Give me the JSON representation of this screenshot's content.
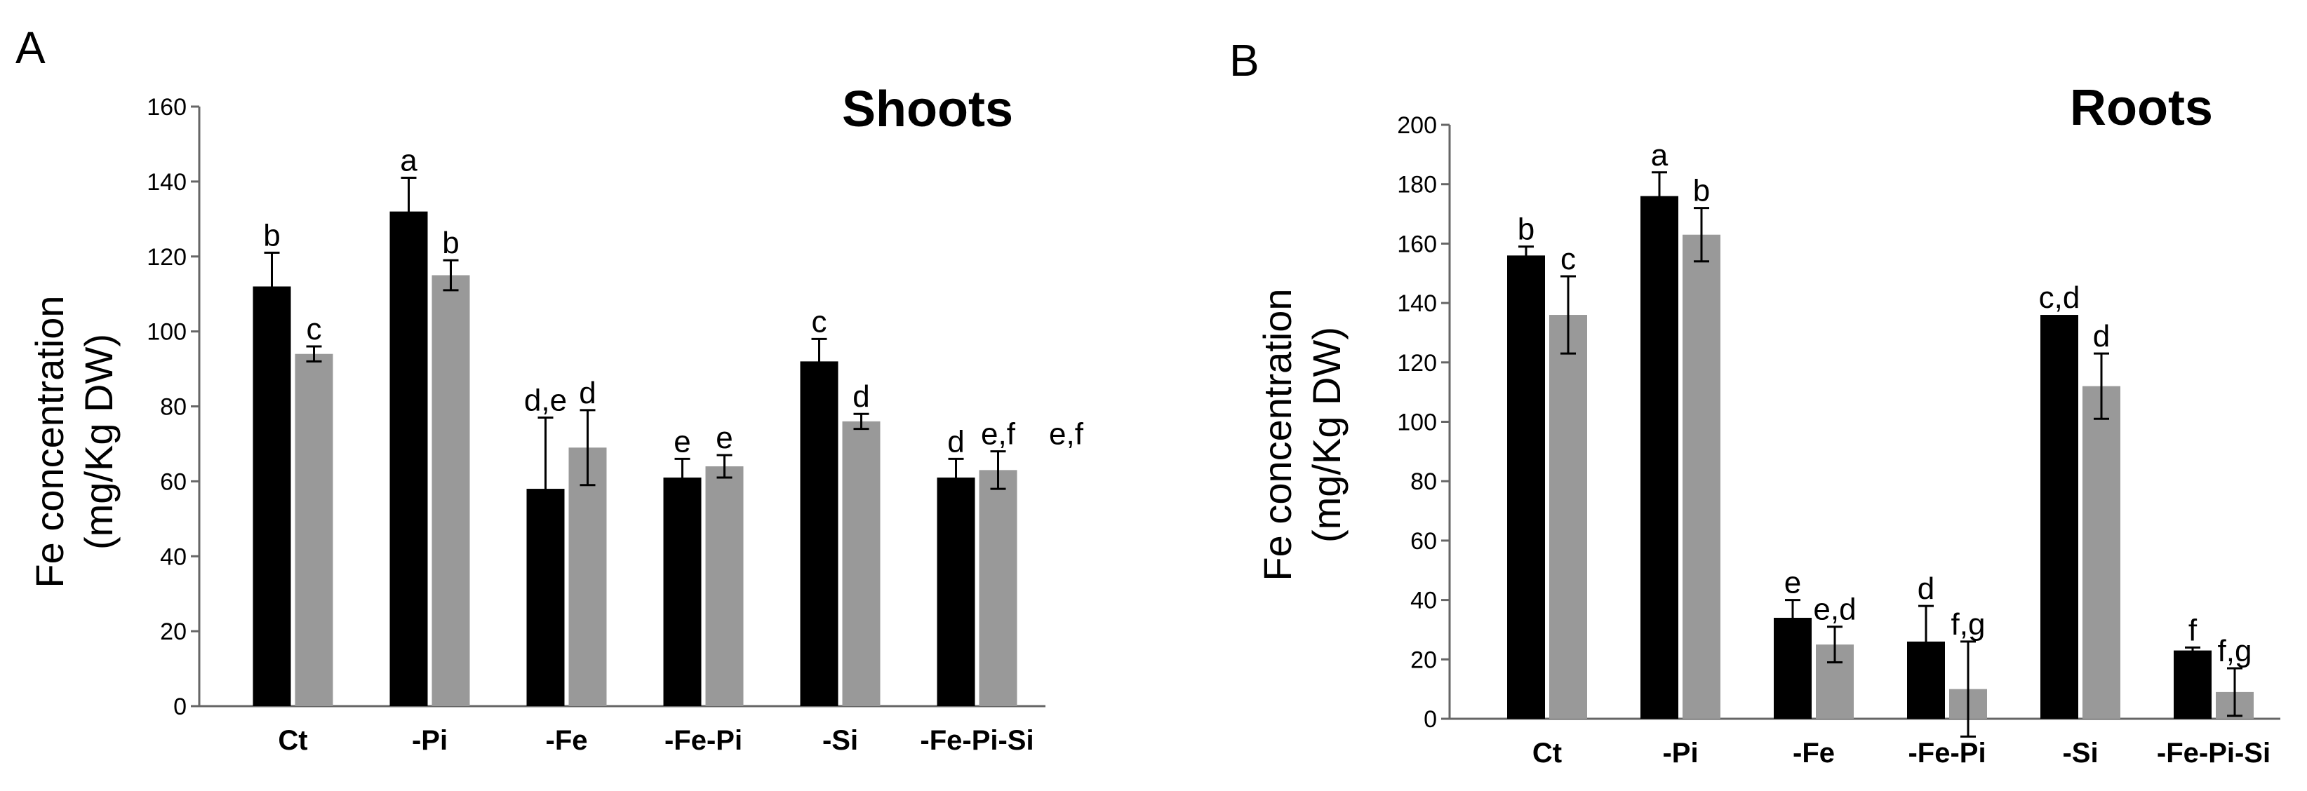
{
  "colors": {
    "series_dark": "#000000",
    "series_light": "#999999"
  },
  "chart_data": [
    {
      "type": "bar",
      "panel": "A",
      "title": "Shoots",
      "ylabel": [
        "Fe concentration",
        "(mg/Kg DW)"
      ],
      "ylim": [
        0,
        160
      ],
      "yticks": [
        0,
        20,
        40,
        60,
        80,
        100,
        120,
        140,
        160
      ],
      "categories": [
        "Ct",
        "-Pi",
        "-Fe",
        "-Fe-Pi",
        "-Si",
        "-Fe-Pi-Si"
      ],
      "series": [
        {
          "values": [
            112,
            132,
            58,
            61,
            92,
            61
          ],
          "errors": [
            9,
            9,
            19,
            5,
            6,
            5
          ],
          "labels": [
            "b",
            "a",
            "d,e",
            "e",
            "c",
            "d"
          ]
        },
        {
          "values": [
            94,
            115,
            69,
            64,
            76,
            63
          ],
          "errors": [
            2,
            4,
            10,
            3,
            2,
            5
          ],
          "labels": [
            "c",
            "b",
            "d",
            "e",
            "d",
            "e,f"
          ]
        }
      ],
      "extra_labels": [
        {
          "category": 5,
          "text": "e,f"
        }
      ]
    },
    {
      "type": "bar",
      "panel": "B",
      "title": "Roots",
      "ylabel": [
        "Fe concentration",
        "(mg/Kg DW)"
      ],
      "ylim": [
        0,
        200
      ],
      "yticks": [
        0,
        20,
        40,
        60,
        80,
        100,
        120,
        140,
        160,
        180,
        200
      ],
      "categories": [
        "Ct",
        "-Pi",
        "-Fe",
        "-Fe-Pi",
        "-Si",
        "-Fe-Pi-Si"
      ],
      "series": [
        {
          "values": [
            156,
            176,
            34,
            26,
            136,
            23
          ],
          "errors": [
            3,
            8,
            6,
            12,
            0,
            1
          ],
          "labels": [
            "b",
            "a",
            "e",
            "d",
            "c,d",
            "f"
          ]
        },
        {
          "values": [
            136,
            163,
            25,
            10,
            112,
            9
          ],
          "errors": [
            13,
            9,
            6,
            16,
            11,
            8
          ],
          "labels": [
            "c",
            "b",
            "e,d",
            "f,g",
            "d",
            "f,g"
          ]
        }
      ],
      "extra_labels": []
    }
  ]
}
